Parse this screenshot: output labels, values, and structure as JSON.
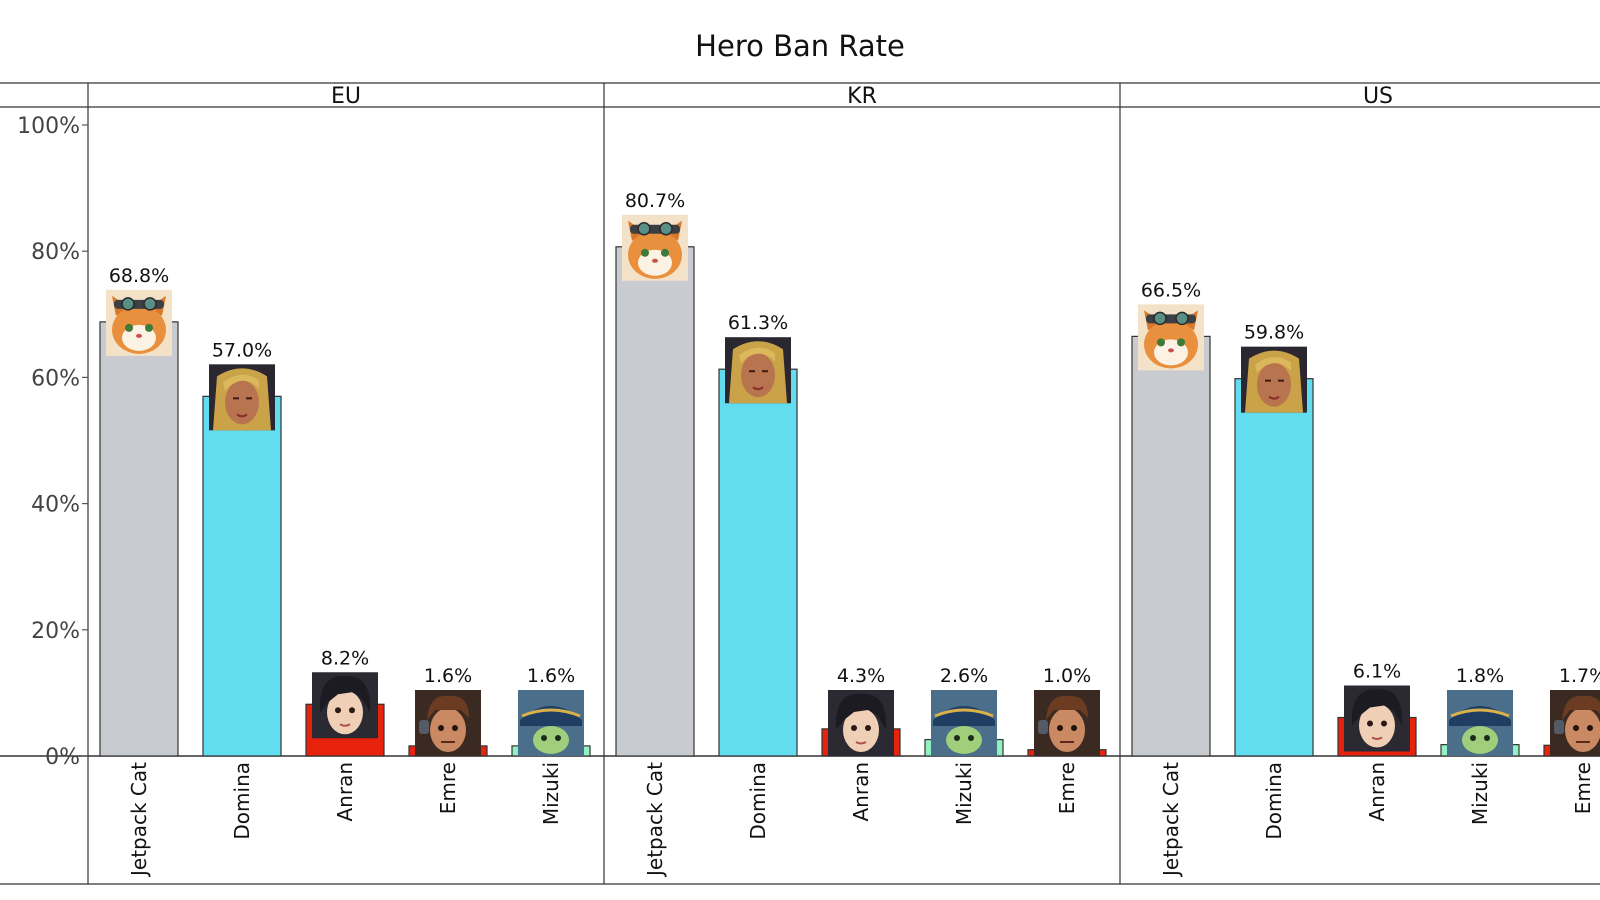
{
  "chart_data": {
    "type": "bar",
    "title": "Hero Ban Rate",
    "ylim": [
      0,
      100
    ],
    "yticks": [
      0,
      20,
      40,
      60,
      80,
      100
    ],
    "ytick_labels": [
      "0%",
      "20%",
      "40%",
      "60%",
      "80%",
      "100%"
    ],
    "value_suffix": "%",
    "grid": false,
    "legend": "none",
    "hero_colors": {
      "Jetpack Cat": "#c8cbd0",
      "Domina": "#62dcef",
      "Anran": "#e8230d",
      "Emre": "#e8230d",
      "Mizuki": "#8ff2c0"
    },
    "hero_icons": {
      "Jetpack Cat": "jetpack-cat-portrait-icon",
      "Domina": "domina-portrait-icon",
      "Anran": "anran-portrait-icon",
      "Emre": "emre-portrait-icon",
      "Mizuki": "mizuki-portrait-icon"
    },
    "panels": [
      {
        "name": "EU",
        "categories": [
          "Jetpack Cat",
          "Domina",
          "Anran",
          "Emre",
          "Mizuki"
        ],
        "values": [
          68.8,
          57.0,
          8.2,
          1.6,
          1.6
        ],
        "labels": [
          "68.8%",
          "57.0%",
          "8.2%",
          "1.6%",
          "1.6%"
        ]
      },
      {
        "name": "KR",
        "categories": [
          "Jetpack Cat",
          "Domina",
          "Anran",
          "Mizuki",
          "Emre"
        ],
        "values": [
          80.7,
          61.3,
          4.3,
          2.6,
          1.0
        ],
        "labels": [
          "80.7%",
          "61.3%",
          "4.3%",
          "2.6%",
          "1.0%"
        ]
      },
      {
        "name": "US",
        "categories": [
          "Jetpack Cat",
          "Domina",
          "Anran",
          "Mizuki",
          "Emre"
        ],
        "values": [
          66.5,
          59.8,
          6.1,
          1.8,
          1.7
        ],
        "labels": [
          "66.5%",
          "59.8%",
          "6.1%",
          "1.8%",
          "1.7%"
        ]
      }
    ]
  }
}
